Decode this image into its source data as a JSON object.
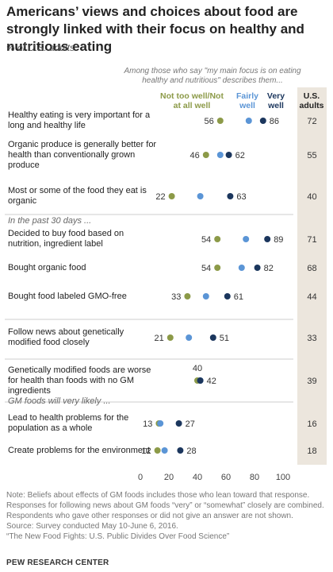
{
  "title": "Americans’ views and choices about food are strongly linked with their focus on healthy and nutritious eating",
  "subtitle": "% of U.S. adults",
  "header_note": "Among those who say \"my main focus is on eating healthy and nutritious\" describes them...",
  "legend": {
    "not_well": "Not too well/Not at all well",
    "fairly": "Fairly well",
    "very": "Very well",
    "us_adults": "U.S. adults"
  },
  "colors": {
    "not_well": "#8c9a48",
    "fairly": "#5b95d6",
    "very": "#1b365d",
    "us_panel": "#ece6dd"
  },
  "chart_data": {
    "type": "scatter",
    "xlim": [
      0,
      100
    ],
    "xticks": [
      0,
      20,
      40,
      60,
      80,
      100
    ],
    "series_keys": [
      "not_well",
      "fairly",
      "very"
    ],
    "groups": [
      {
        "heading": "",
        "rows": [
          {
            "label": "Healthy eating is very important for a long and healthy life",
            "not_well": 56,
            "fairly": 76,
            "very": 86,
            "us_adults": 72
          },
          {
            "label": "Organic produce is generally better for health than conventionally grown produce",
            "not_well": 46,
            "fairly": 56,
            "very": 62,
            "us_adults": 55
          },
          {
            "label": "Most or some of the food they eat is organic",
            "not_well": 22,
            "fairly": 42,
            "very": 63,
            "us_adults": 40
          }
        ]
      },
      {
        "heading": "In the past 30 days ...",
        "rows": [
          {
            "label": "Decided to buy food based on nutrition, ingredient label",
            "not_well": 54,
            "fairly": 74,
            "very": 89,
            "us_adults": 71
          },
          {
            "label": "Bought organic food",
            "not_well": 54,
            "fairly": 71,
            "very": 82,
            "us_adults": 68
          },
          {
            "label": "Bought food labeled GMO-free",
            "not_well": 33,
            "fairly": 46,
            "very": 61,
            "us_adults": 44
          }
        ]
      },
      {
        "heading": "",
        "rows": [
          {
            "label": "Follow news about genetically modified food closely",
            "not_well": 21,
            "fairly": 34,
            "very": 51,
            "us_adults": 33
          }
        ]
      },
      {
        "heading": "",
        "rows": [
          {
            "label": "Genetically modified foods are worse for health than foods with no GM ingredients",
            "not_well": 40,
            "fairly": 42,
            "very": 42,
            "us_adults": 39
          }
        ]
      },
      {
        "heading": "GM foods will very likely ...",
        "rows": [
          {
            "label": "Lead to health problems for the population as a whole",
            "not_well": 13,
            "fairly": 14,
            "very": 27,
            "us_adults": 16
          },
          {
            "label": "Create problems for the environment",
            "not_well": 12,
            "fairly": 17,
            "very": 28,
            "us_adults": 18
          }
        ]
      }
    ]
  },
  "notes": [
    "Note: Beliefs about effects of GM foods includes those who lean toward that response.",
    "Responses for following news about GM foods “very” or “somewhat” closely are combined.",
    "Respondents who gave other responses or did not give an answer are not shown.",
    "Source: Survey conducted May 10-June 6, 2016.",
    "“The New Food Fights: U.S. Public Divides Over Food Science”"
  ],
  "brand": "PEW RESEARCH CENTER"
}
